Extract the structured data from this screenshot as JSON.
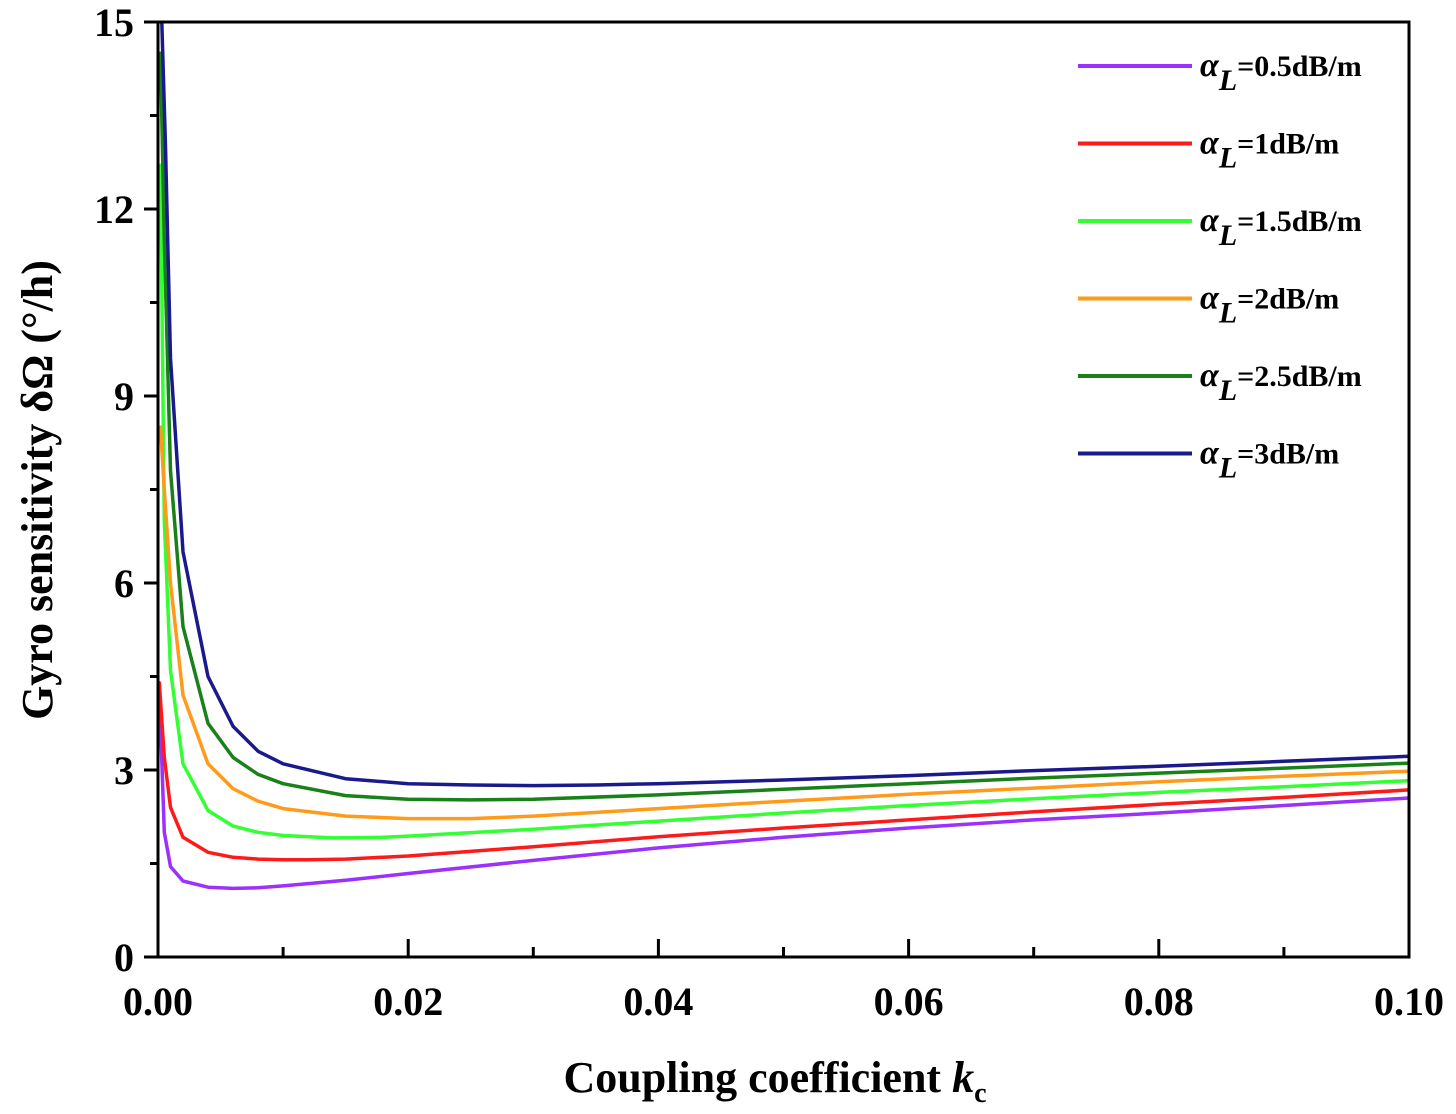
{
  "chart_data": {
    "type": "line",
    "xlabel": "Coupling coefficient ",
    "xlabel_var": "k",
    "xlabel_sub": "c",
    "ylabel": "Gyro sensitivity δΩ (°/h)",
    "xlim": [
      0,
      0.1
    ],
    "ylim": [
      0,
      15
    ],
    "x_ticks": [
      0.0,
      0.02,
      0.04,
      0.06,
      0.08,
      0.1
    ],
    "x_tick_labels": [
      "0.00",
      "0.02",
      "0.04",
      "0.06",
      "0.08",
      "0.10"
    ],
    "y_ticks": [
      0,
      3,
      6,
      9,
      12,
      15
    ],
    "y_tick_labels": [
      "0",
      "3",
      "6",
      "9",
      "12",
      "15"
    ],
    "grid": false,
    "legend_position": "top-right",
    "series": [
      {
        "name": "α_L=0.5dB/m",
        "label_sym": "α",
        "label_sub": "L",
        "label_rest": "=0.5dB/m",
        "color": "#9b30ff",
        "points": [
          [
            0.0001,
            4.3
          ],
          [
            0.0005,
            2.0
          ],
          [
            0.001,
            1.45
          ],
          [
            0.002,
            1.22
          ],
          [
            0.004,
            1.12
          ],
          [
            0.006,
            1.1
          ],
          [
            0.008,
            1.11
          ],
          [
            0.01,
            1.14
          ],
          [
            0.015,
            1.23
          ],
          [
            0.02,
            1.34
          ],
          [
            0.03,
            1.55
          ],
          [
            0.04,
            1.75
          ],
          [
            0.05,
            1.92
          ],
          [
            0.06,
            2.07
          ],
          [
            0.07,
            2.2
          ],
          [
            0.08,
            2.31
          ],
          [
            0.09,
            2.43
          ],
          [
            0.1,
            2.55
          ]
        ]
      },
      {
        "name": "α_L=1dB/m",
        "label_sym": "α",
        "label_sub": "L",
        "label_rest": "=1dB/m",
        "color": "#ff1a1a",
        "points": [
          [
            0.0001,
            4.4
          ],
          [
            0.0005,
            3.2
          ],
          [
            0.001,
            2.4
          ],
          [
            0.002,
            1.92
          ],
          [
            0.004,
            1.68
          ],
          [
            0.006,
            1.6
          ],
          [
            0.008,
            1.57
          ],
          [
            0.01,
            1.56
          ],
          [
            0.012,
            1.56
          ],
          [
            0.015,
            1.57
          ],
          [
            0.02,
            1.62
          ],
          [
            0.03,
            1.77
          ],
          [
            0.04,
            1.93
          ],
          [
            0.05,
            2.07
          ],
          [
            0.06,
            2.2
          ],
          [
            0.07,
            2.33
          ],
          [
            0.08,
            2.45
          ],
          [
            0.09,
            2.56
          ],
          [
            0.1,
            2.68
          ]
        ]
      },
      {
        "name": "α_L=1.5dB/m",
        "label_sym": "α",
        "label_sub": "L",
        "label_rest": "=1.5dB/m",
        "color": "#33ff33",
        "points": [
          [
            0.0002,
            12.7
          ],
          [
            0.0005,
            7.0
          ],
          [
            0.001,
            4.6
          ],
          [
            0.002,
            3.1
          ],
          [
            0.004,
            2.35
          ],
          [
            0.006,
            2.1
          ],
          [
            0.008,
            2.0
          ],
          [
            0.01,
            1.95
          ],
          [
            0.014,
            1.91
          ],
          [
            0.018,
            1.92
          ],
          [
            0.02,
            1.94
          ],
          [
            0.03,
            2.05
          ],
          [
            0.04,
            2.18
          ],
          [
            0.05,
            2.31
          ],
          [
            0.06,
            2.43
          ],
          [
            0.07,
            2.54
          ],
          [
            0.08,
            2.64
          ],
          [
            0.09,
            2.73
          ],
          [
            0.1,
            2.83
          ]
        ]
      },
      {
        "name": "α_L=2dB/m",
        "label_sym": "α",
        "label_sub": "L",
        "label_rest": "=2dB/m",
        "color": "#ff9a1a",
        "points": [
          [
            0.0002,
            8.5
          ],
          [
            0.0005,
            7.5
          ],
          [
            0.001,
            6.0
          ],
          [
            0.002,
            4.2
          ],
          [
            0.004,
            3.1
          ],
          [
            0.006,
            2.7
          ],
          [
            0.008,
            2.5
          ],
          [
            0.01,
            2.38
          ],
          [
            0.015,
            2.26
          ],
          [
            0.02,
            2.22
          ],
          [
            0.025,
            2.22
          ],
          [
            0.03,
            2.26
          ],
          [
            0.04,
            2.38
          ],
          [
            0.05,
            2.5
          ],
          [
            0.06,
            2.61
          ],
          [
            0.07,
            2.71
          ],
          [
            0.08,
            2.81
          ],
          [
            0.09,
            2.9
          ],
          [
            0.1,
            2.98
          ]
        ]
      },
      {
        "name": "α_L=2.5dB/m",
        "label_sym": "α",
        "label_sub": "L",
        "label_rest": "=2.5dB/m",
        "color": "#1a801a",
        "points": [
          [
            0.0002,
            14.5
          ],
          [
            0.0005,
            11.5
          ],
          [
            0.001,
            7.8
          ],
          [
            0.002,
            5.3
          ],
          [
            0.004,
            3.75
          ],
          [
            0.006,
            3.2
          ],
          [
            0.008,
            2.93
          ],
          [
            0.01,
            2.78
          ],
          [
            0.015,
            2.59
          ],
          [
            0.02,
            2.53
          ],
          [
            0.025,
            2.52
          ],
          [
            0.03,
            2.53
          ],
          [
            0.04,
            2.6
          ],
          [
            0.05,
            2.69
          ],
          [
            0.06,
            2.78
          ],
          [
            0.07,
            2.87
          ],
          [
            0.08,
            2.95
          ],
          [
            0.09,
            3.03
          ],
          [
            0.1,
            3.11
          ]
        ]
      },
      {
        "name": "α_L=3dB/m",
        "label_sym": "α",
        "label_sub": "L",
        "label_rest": "=3dB/m",
        "color": "#1a1a8c",
        "points": [
          [
            0.0003,
            15.0
          ],
          [
            0.0006,
            13.0
          ],
          [
            0.001,
            9.6
          ],
          [
            0.002,
            6.5
          ],
          [
            0.004,
            4.5
          ],
          [
            0.006,
            3.7
          ],
          [
            0.008,
            3.3
          ],
          [
            0.01,
            3.1
          ],
          [
            0.015,
            2.86
          ],
          [
            0.02,
            2.78
          ],
          [
            0.025,
            2.76
          ],
          [
            0.03,
            2.75
          ],
          [
            0.035,
            2.76
          ],
          [
            0.04,
            2.78
          ],
          [
            0.05,
            2.84
          ],
          [
            0.06,
            2.91
          ],
          [
            0.07,
            2.99
          ],
          [
            0.08,
            3.06
          ],
          [
            0.09,
            3.14
          ],
          [
            0.1,
            3.22
          ]
        ]
      }
    ]
  }
}
